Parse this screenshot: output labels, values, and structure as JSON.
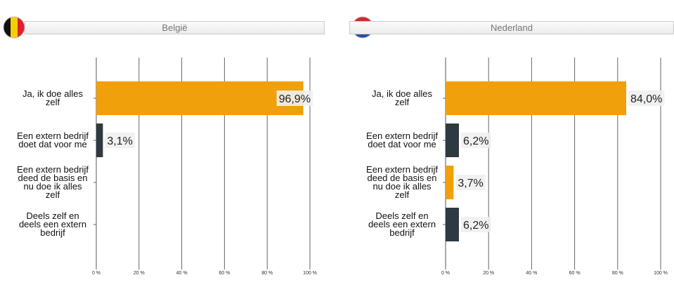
{
  "chart_data": [
    {
      "type": "bar",
      "orientation": "horizontal",
      "title": "België",
      "flag": "be",
      "categories": [
        "Ja, ik doe alles zelf",
        "Een extern bedrijf doet dat voor me",
        "Een extern bedrijf deed de basis en nu doe ik alles zelf",
        "Deels zelf en deels een extern bedrijf"
      ],
      "values": [
        96.9,
        3.1,
        null,
        null
      ],
      "value_labels": [
        "96,9%",
        "3,1%",
        null,
        null
      ],
      "colors": [
        "#f0a00a",
        "#2e3a40",
        "#f0a00a",
        "#2e3a40"
      ],
      "xlim": [
        0,
        100
      ],
      "xticks": [
        {
          "value": 0,
          "label": "0 %"
        },
        {
          "value": 20,
          "label": "20 %"
        },
        {
          "value": 40,
          "label": "40 %"
        },
        {
          "value": 60,
          "label": "60 %"
        },
        {
          "value": 80,
          "label": "80 %"
        },
        {
          "value": 100,
          "label": "100 %"
        }
      ],
      "grid": true
    },
    {
      "type": "bar",
      "orientation": "horizontal",
      "title": "Nederland",
      "flag": "nl",
      "categories": [
        "Ja, ik doe alles zelf",
        "Een extern bedrijf doet dat voor me",
        "Een extern bedrijf deed de basis en nu doe ik alles zelf",
        "Deels zelf en deels een extern bedrijf"
      ],
      "values": [
        84.0,
        6.2,
        3.7,
        6.2
      ],
      "value_labels": [
        "84,0%",
        "6,2%",
        "3,7%",
        "6,2%"
      ],
      "colors": [
        "#f0a00a",
        "#2e3a40",
        "#f0a00a",
        "#2e3a40"
      ],
      "xlim": [
        0,
        100
      ],
      "xticks": [
        {
          "value": 0,
          "label": "0 %"
        },
        {
          "value": 20,
          "label": "20 %"
        },
        {
          "value": 40,
          "label": "40 %"
        },
        {
          "value": 60,
          "label": "60 %"
        },
        {
          "value": 80,
          "label": "80 %"
        },
        {
          "value": 100,
          "label": "100 %"
        }
      ],
      "grid": true
    }
  ]
}
